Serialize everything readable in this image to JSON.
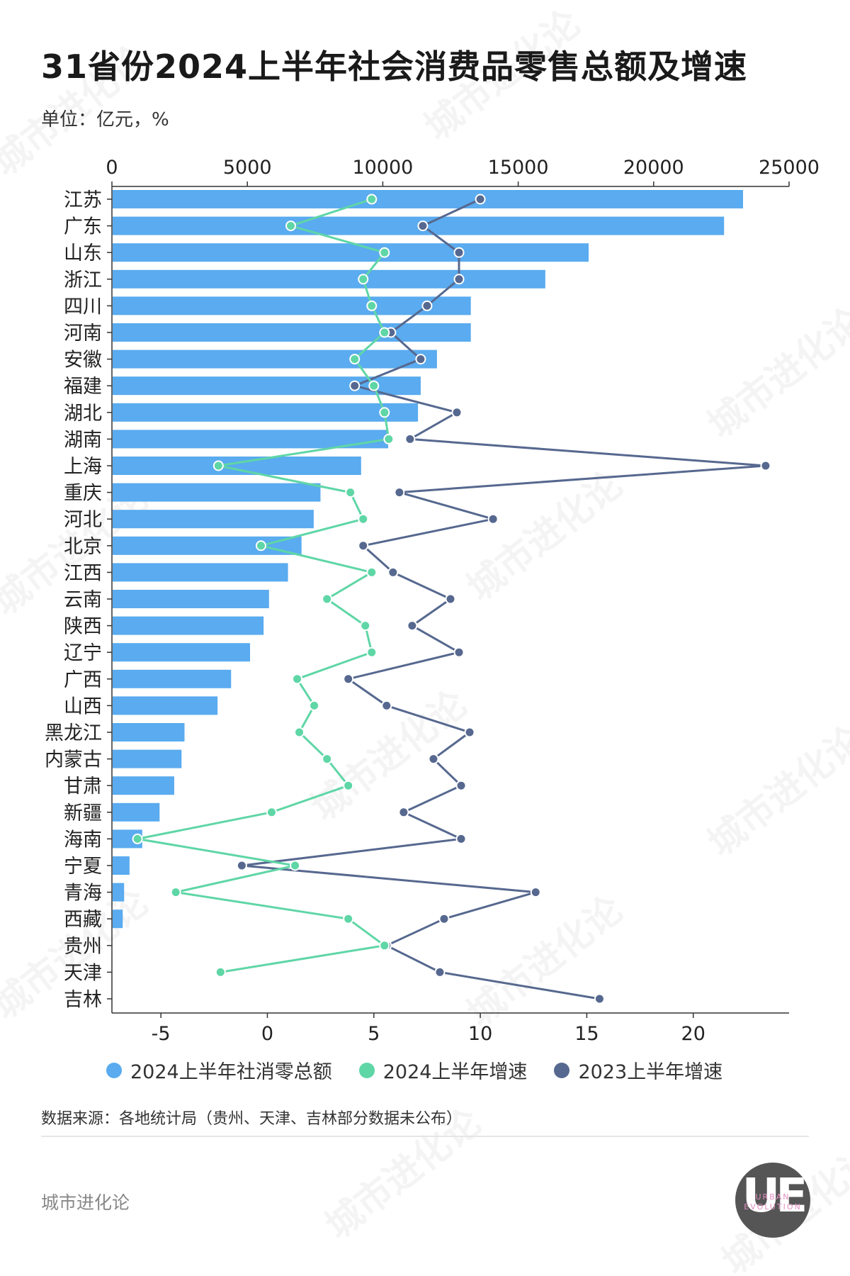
{
  "title": "31省份2024上半年社会消费品零售总额及增速",
  "unit": "单位：亿元，%",
  "legend": {
    "bar": "2024上半年社消零总额",
    "g2024": "2024上半年增速",
    "g2023": "2023上半年增速"
  },
  "source": "数据来源：各地统计局（贵州、天津、吉林部分数据未公布）",
  "footer_name": "城市进化论",
  "logo": {
    "letters": "UE",
    "line1": "URBAN",
    "line2": "EVOLUTION"
  },
  "watermark": "城市进化论",
  "colors": {
    "bar": "#5aabef",
    "g2024": "#5fd6a6",
    "g2023": "#56688f"
  },
  "chart_data": {
    "type": "bar",
    "orientation": "horizontal",
    "categories": [
      "江苏",
      "广东",
      "山东",
      "浙江",
      "四川",
      "河南",
      "安徽",
      "福建",
      "湖北",
      "湖南",
      "上海",
      "重庆",
      "河北",
      "北京",
      "江西",
      "云南",
      "陕西",
      "辽宁",
      "广西",
      "山西",
      "黑龙江",
      "内蒙古",
      "甘肃",
      "新疆",
      "海南",
      "宁夏",
      "青海",
      "西藏",
      "贵州",
      "天津",
      "吉林"
    ],
    "top_axis": {
      "range": [
        0,
        25000
      ],
      "ticks": [
        "0",
        "5000",
        "10000",
        "15000",
        "20000",
        "25000"
      ]
    },
    "bottom_axis": {
      "range": [
        -7.3,
        24.5
      ],
      "ticks": [
        "-5",
        "0",
        "5",
        "10",
        "15",
        "20"
      ]
    },
    "series": [
      {
        "name": "2024上半年社消零总额",
        "type": "bar",
        "axis": "top",
        "values": [
          23300,
          22600,
          17600,
          16000,
          13250,
          13250,
          12000,
          11400,
          11300,
          10200,
          9200,
          7700,
          7450,
          7000,
          6500,
          5800,
          5600,
          5100,
          4400,
          3900,
          2680,
          2570,
          2300,
          1760,
          1120,
          650,
          450,
          400,
          null,
          null,
          null
        ]
      },
      {
        "name": "2024上半年增速",
        "type": "line",
        "axis": "bottom",
        "values": [
          4.9,
          1.1,
          5.5,
          4.5,
          4.9,
          5.5,
          4.1,
          5.0,
          5.5,
          5.7,
          -2.3,
          3.9,
          4.5,
          -0.3,
          4.9,
          2.8,
          4.6,
          4.9,
          1.4,
          2.2,
          1.5,
          2.8,
          3.8,
          0.2,
          -6.1,
          1.3,
          -4.3,
          3.8,
          5.5,
          -2.2,
          null
        ]
      },
      {
        "name": "2023上半年增速",
        "type": "line",
        "axis": "bottom",
        "values": [
          10.0,
          7.3,
          9.0,
          9.0,
          7.5,
          5.8,
          7.2,
          4.1,
          8.9,
          6.7,
          23.4,
          6.2,
          10.6,
          4.5,
          5.9,
          8.6,
          6.8,
          9.0,
          3.8,
          5.6,
          9.5,
          7.8,
          9.1,
          6.4,
          9.1,
          -1.2,
          12.6,
          8.3,
          5.6,
          8.1,
          15.6
        ]
      }
    ]
  }
}
